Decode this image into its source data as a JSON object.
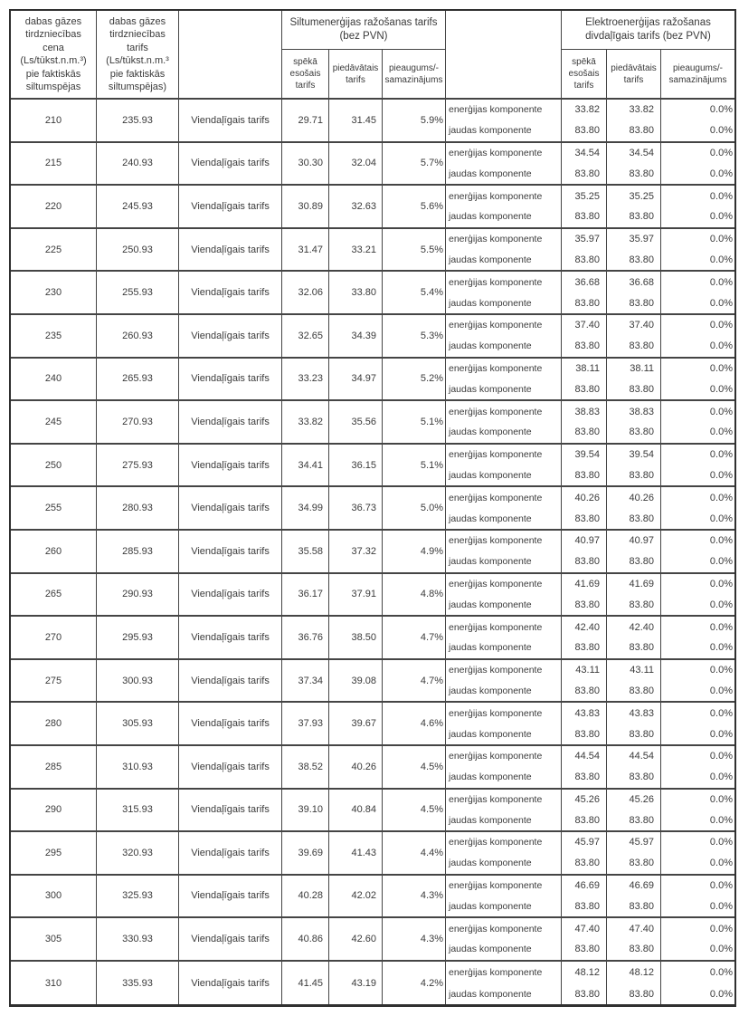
{
  "table": {
    "header": {
      "gas_price": "dabas gāzes\ntirdzniecības\ncena\n(Ls/tūkst.n.m.³)\npie faktiskās\nsiltumspējas",
      "gas_tariff": "dabas gāzes\ntirdzniecības\ntarifs\n(Ls/tūkst.n.m.³\npie faktiskās\nsiltumspējas)",
      "heat_group": "Siltumenerģijas ražošanas tarifs\n(bez PVN)",
      "elec_group": "Elektroenerģijas ražošanas\ndivdaļīgais tarifs (bez PVN)",
      "sub_current": "spēkā\nesošais\ntarifs",
      "sub_proposed": "piedāvātais\ntarifs",
      "sub_change": "pieaugums/-\nsamazinājums"
    },
    "rows": [
      {
        "gas_price": "210",
        "gas_tariff": "235.93",
        "tariff_type": "Viendaļīgais tarifs",
        "heat_current": "29.71",
        "heat_proposed": "31.45",
        "heat_change": "5.9%",
        "components": [
          {
            "label": "enerģijas komponente",
            "elec_current": "33.82",
            "elec_proposed": "33.82",
            "elec_change": "0.0%"
          },
          {
            "label": "jaudas komponente",
            "elec_current": "83.80",
            "elec_proposed": "83.80",
            "elec_change": "0.0%"
          }
        ]
      },
      {
        "gas_price": "215",
        "gas_tariff": "240.93",
        "tariff_type": "Viendaļīgais tarifs",
        "heat_current": "30.30",
        "heat_proposed": "32.04",
        "heat_change": "5.7%",
        "components": [
          {
            "label": "enerģijas komponente",
            "elec_current": "34.54",
            "elec_proposed": "34.54",
            "elec_change": "0.0%"
          },
          {
            "label": "jaudas komponente",
            "elec_current": "83.80",
            "elec_proposed": "83.80",
            "elec_change": "0.0%"
          }
        ]
      },
      {
        "gas_price": "220",
        "gas_tariff": "245.93",
        "tariff_type": "Viendaļīgais tarifs",
        "heat_current": "30.89",
        "heat_proposed": "32.63",
        "heat_change": "5.6%",
        "components": [
          {
            "label": "enerģijas komponente",
            "elec_current": "35.25",
            "elec_proposed": "35.25",
            "elec_change": "0.0%"
          },
          {
            "label": "jaudas komponente",
            "elec_current": "83.80",
            "elec_proposed": "83.80",
            "elec_change": "0.0%"
          }
        ]
      },
      {
        "gas_price": "225",
        "gas_tariff": "250.93",
        "tariff_type": "Viendaļīgais tarifs",
        "heat_current": "31.47",
        "heat_proposed": "33.21",
        "heat_change": "5.5%",
        "components": [
          {
            "label": "enerģijas komponente",
            "elec_current": "35.97",
            "elec_proposed": "35.97",
            "elec_change": "0.0%"
          },
          {
            "label": "jaudas komponente",
            "elec_current": "83.80",
            "elec_proposed": "83.80",
            "elec_change": "0.0%"
          }
        ]
      },
      {
        "gas_price": "230",
        "gas_tariff": "255.93",
        "tariff_type": "Viendaļīgais tarifs",
        "heat_current": "32.06",
        "heat_proposed": "33.80",
        "heat_change": "5.4%",
        "components": [
          {
            "label": "enerģijas komponente",
            "elec_current": "36.68",
            "elec_proposed": "36.68",
            "elec_change": "0.0%"
          },
          {
            "label": "jaudas komponente",
            "elec_current": "83.80",
            "elec_proposed": "83.80",
            "elec_change": "0.0%"
          }
        ]
      },
      {
        "gas_price": "235",
        "gas_tariff": "260.93",
        "tariff_type": "Viendaļīgais tarifs",
        "heat_current": "32.65",
        "heat_proposed": "34.39",
        "heat_change": "5.3%",
        "components": [
          {
            "label": "enerģijas komponente",
            "elec_current": "37.40",
            "elec_proposed": "37.40",
            "elec_change": "0.0%"
          },
          {
            "label": "jaudas komponente",
            "elec_current": "83.80",
            "elec_proposed": "83.80",
            "elec_change": "0.0%"
          }
        ]
      },
      {
        "gas_price": "240",
        "gas_tariff": "265.93",
        "tariff_type": "Viendaļīgais tarifs",
        "heat_current": "33.23",
        "heat_proposed": "34.97",
        "heat_change": "5.2%",
        "components": [
          {
            "label": "enerģijas komponente",
            "elec_current": "38.11",
            "elec_proposed": "38.11",
            "elec_change": "0.0%"
          },
          {
            "label": "jaudas komponente",
            "elec_current": "83.80",
            "elec_proposed": "83.80",
            "elec_change": "0.0%"
          }
        ]
      },
      {
        "gas_price": "245",
        "gas_tariff": "270.93",
        "tariff_type": "Viendaļīgais tarifs",
        "heat_current": "33.82",
        "heat_proposed": "35.56",
        "heat_change": "5.1%",
        "components": [
          {
            "label": "enerģijas komponente",
            "elec_current": "38.83",
            "elec_proposed": "38.83",
            "elec_change": "0.0%"
          },
          {
            "label": "jaudas komponente",
            "elec_current": "83.80",
            "elec_proposed": "83.80",
            "elec_change": "0.0%"
          }
        ]
      },
      {
        "gas_price": "250",
        "gas_tariff": "275.93",
        "tariff_type": "Viendaļīgais tarifs",
        "heat_current": "34.41",
        "heat_proposed": "36.15",
        "heat_change": "5.1%",
        "components": [
          {
            "label": "enerģijas komponente",
            "elec_current": "39.54",
            "elec_proposed": "39.54",
            "elec_change": "0.0%"
          },
          {
            "label": "jaudas komponente",
            "elec_current": "83.80",
            "elec_proposed": "83.80",
            "elec_change": "0.0%"
          }
        ]
      },
      {
        "gas_price": "255",
        "gas_tariff": "280.93",
        "tariff_type": "Viendaļīgais tarifs",
        "heat_current": "34.99",
        "heat_proposed": "36.73",
        "heat_change": "5.0%",
        "components": [
          {
            "label": "enerģijas komponente",
            "elec_current": "40.26",
            "elec_proposed": "40.26",
            "elec_change": "0.0%"
          },
          {
            "label": "jaudas komponente",
            "elec_current": "83.80",
            "elec_proposed": "83.80",
            "elec_change": "0.0%"
          }
        ]
      },
      {
        "gas_price": "260",
        "gas_tariff": "285.93",
        "tariff_type": "Viendaļīgais tarifs",
        "heat_current": "35.58",
        "heat_proposed": "37.32",
        "heat_change": "4.9%",
        "components": [
          {
            "label": "enerģijas komponente",
            "elec_current": "40.97",
            "elec_proposed": "40.97",
            "elec_change": "0.0%"
          },
          {
            "label": "jaudas komponente",
            "elec_current": "83.80",
            "elec_proposed": "83.80",
            "elec_change": "0.0%"
          }
        ]
      },
      {
        "gas_price": "265",
        "gas_tariff": "290.93",
        "tariff_type": "Viendaļīgais tarifs",
        "heat_current": "36.17",
        "heat_proposed": "37.91",
        "heat_change": "4.8%",
        "components": [
          {
            "label": "enerģijas komponente",
            "elec_current": "41.69",
            "elec_proposed": "41.69",
            "elec_change": "0.0%"
          },
          {
            "label": "jaudas komponente",
            "elec_current": "83.80",
            "elec_proposed": "83.80",
            "elec_change": "0.0%"
          }
        ]
      },
      {
        "gas_price": "270",
        "gas_tariff": "295.93",
        "tariff_type": "Viendaļīgais tarifs",
        "heat_current": "36.76",
        "heat_proposed": "38.50",
        "heat_change": "4.7%",
        "components": [
          {
            "label": "enerģijas komponente",
            "elec_current": "42.40",
            "elec_proposed": "42.40",
            "elec_change": "0.0%"
          },
          {
            "label": "jaudas komponente",
            "elec_current": "83.80",
            "elec_proposed": "83.80",
            "elec_change": "0.0%"
          }
        ]
      },
      {
        "gas_price": "275",
        "gas_tariff": "300.93",
        "tariff_type": "Viendaļīgais tarifs",
        "heat_current": "37.34",
        "heat_proposed": "39.08",
        "heat_change": "4.7%",
        "components": [
          {
            "label": "enerģijas komponente",
            "elec_current": "43.11",
            "elec_proposed": "43.11",
            "elec_change": "0.0%"
          },
          {
            "label": "jaudas komponente",
            "elec_current": "83.80",
            "elec_proposed": "83.80",
            "elec_change": "0.0%"
          }
        ]
      },
      {
        "gas_price": "280",
        "gas_tariff": "305.93",
        "tariff_type": "Viendaļīgais tarifs",
        "heat_current": "37.93",
        "heat_proposed": "39.67",
        "heat_change": "4.6%",
        "components": [
          {
            "label": "enerģijas komponente",
            "elec_current": "43.83",
            "elec_proposed": "43.83",
            "elec_change": "0.0%"
          },
          {
            "label": "jaudas komponente",
            "elec_current": "83.80",
            "elec_proposed": "83.80",
            "elec_change": "0.0%"
          }
        ]
      },
      {
        "gas_price": "285",
        "gas_tariff": "310.93",
        "tariff_type": "Viendaļīgais tarifs",
        "heat_current": "38.52",
        "heat_proposed": "40.26",
        "heat_change": "4.5%",
        "components": [
          {
            "label": "enerģijas komponente",
            "elec_current": "44.54",
            "elec_proposed": "44.54",
            "elec_change": "0.0%"
          },
          {
            "label": "jaudas komponente",
            "elec_current": "83.80",
            "elec_proposed": "83.80",
            "elec_change": "0.0%"
          }
        ]
      },
      {
        "gas_price": "290",
        "gas_tariff": "315.93",
        "tariff_type": "Viendaļīgais tarifs",
        "heat_current": "39.10",
        "heat_proposed": "40.84",
        "heat_change": "4.5%",
        "components": [
          {
            "label": "enerģijas komponente",
            "elec_current": "45.26",
            "elec_proposed": "45.26",
            "elec_change": "0.0%"
          },
          {
            "label": "jaudas komponente",
            "elec_current": "83.80",
            "elec_proposed": "83.80",
            "elec_change": "0.0%"
          }
        ]
      },
      {
        "gas_price": "295",
        "gas_tariff": "320.93",
        "tariff_type": "Viendaļīgais tarifs",
        "heat_current": "39.69",
        "heat_proposed": "41.43",
        "heat_change": "4.4%",
        "components": [
          {
            "label": "enerģijas komponente",
            "elec_current": "45.97",
            "elec_proposed": "45.97",
            "elec_change": "0.0%"
          },
          {
            "label": "jaudas komponente",
            "elec_current": "83.80",
            "elec_proposed": "83.80",
            "elec_change": "0.0%"
          }
        ]
      },
      {
        "gas_price": "300",
        "gas_tariff": "325.93",
        "tariff_type": "Viendaļīgais tarifs",
        "heat_current": "40.28",
        "heat_proposed": "42.02",
        "heat_change": "4.3%",
        "components": [
          {
            "label": "enerģijas komponente",
            "elec_current": "46.69",
            "elec_proposed": "46.69",
            "elec_change": "0.0%"
          },
          {
            "label": "jaudas komponente",
            "elec_current": "83.80",
            "elec_proposed": "83.80",
            "elec_change": "0.0%"
          }
        ]
      },
      {
        "gas_price": "305",
        "gas_tariff": "330.93",
        "tariff_type": "Viendaļīgais tarifs",
        "heat_current": "40.86",
        "heat_proposed": "42.60",
        "heat_change": "4.3%",
        "components": [
          {
            "label": "enerģijas komponente",
            "elec_current": "47.40",
            "elec_proposed": "47.40",
            "elec_change": "0.0%"
          },
          {
            "label": "jaudas komponente",
            "elec_current": "83.80",
            "elec_proposed": "83.80",
            "elec_change": "0.0%"
          }
        ]
      },
      {
        "gas_price": "310",
        "gas_tariff": "335.93",
        "tariff_type": "Viendaļīgais tarifs",
        "heat_current": "41.45",
        "heat_proposed": "43.19",
        "heat_change": "4.2%",
        "components": [
          {
            "label": "enerģijas komponente",
            "elec_current": "48.12",
            "elec_proposed": "48.12",
            "elec_change": "0.0%"
          },
          {
            "label": "jaudas komponente",
            "elec_current": "83.80",
            "elec_proposed": "83.80",
            "elec_change": "0.0%"
          }
        ]
      }
    ]
  }
}
